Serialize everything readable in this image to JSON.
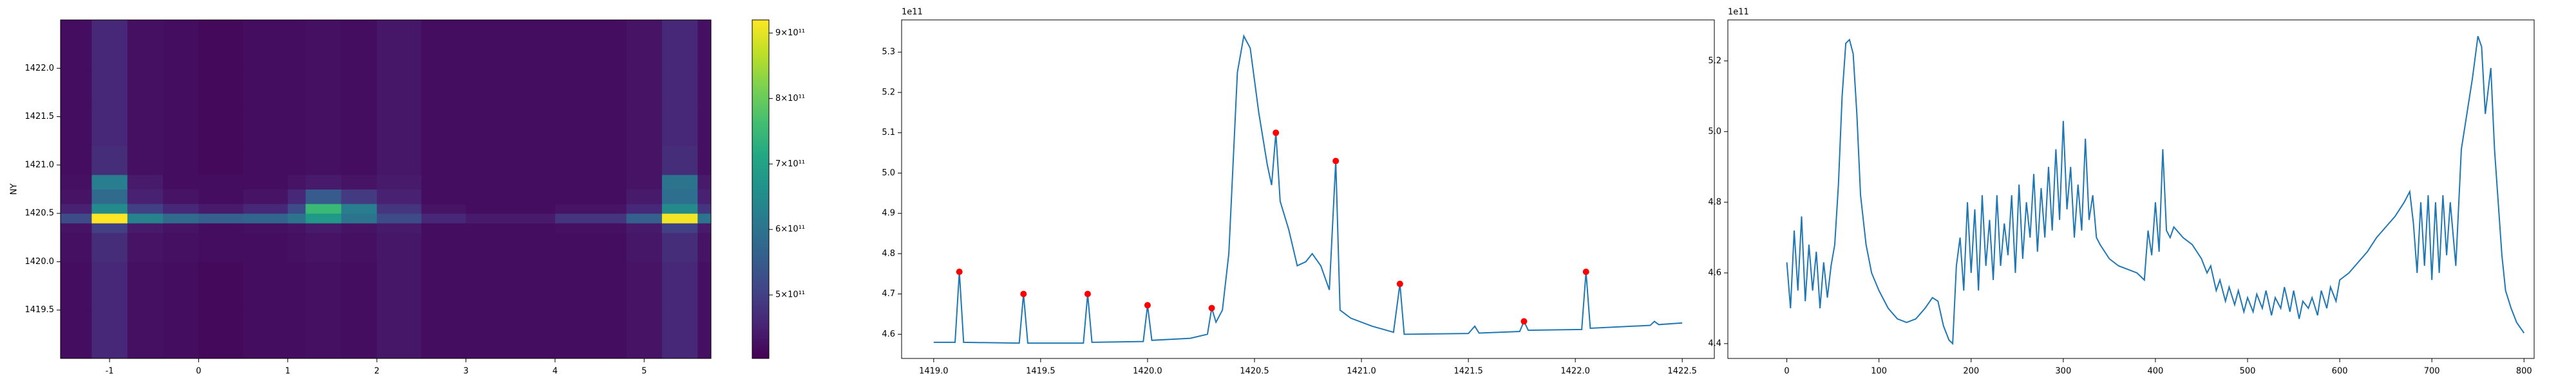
{
  "chart_data": [
    {
      "type": "heatmap",
      "y_label": "NY",
      "colormap": "viridis",
      "xlim": [
        -1.55,
        5.75
      ],
      "ylim": [
        1419.0,
        1422.5
      ],
      "xticks": [
        -1,
        0,
        1,
        2,
        3,
        4,
        5
      ],
      "yticks": [
        1419.5,
        {
          "value": 1420,
          "label": "1420.0"
        },
        1420.5,
        {
          "value": 1421,
          "label": "1421.0"
        },
        1421.5,
        {
          "value": 1422,
          "label": "1422.0"
        }
      ],
      "x_edges": [
        -1.55,
        -1.2,
        -0.8,
        -0.4,
        0,
        0.5,
        1.0,
        1.2,
        1.6,
        2.0,
        2.5,
        3.0,
        4.0,
        4.8,
        5.2,
        5.6,
        5.75
      ],
      "y_edges": [
        1419.0,
        1419.5,
        1420.0,
        1420.3,
        1420.4,
        1420.5,
        1420.6,
        1420.75,
        1420.9,
        1421.2,
        1421.6,
        1422.0,
        1422.5
      ],
      "z": [
        [
          420000000000.0,
          460000000000.0,
          425000000000.0,
          420000000000.0,
          415000000000.0,
          420000000000.0,
          420000000000.0,
          425000000000.0,
          420000000000.0,
          435000000000.0,
          420000000000.0,
          420000000000.0,
          420000000000.0,
          430000000000.0,
          460000000000.0,
          425000000000.0
        ],
        [
          420000000000.0,
          460000000000.0,
          425000000000.0,
          420000000000.0,
          415000000000.0,
          420000000000.0,
          420000000000.0,
          425000000000.0,
          420000000000.0,
          435000000000.0,
          420000000000.0,
          420000000000.0,
          420000000000.0,
          430000000000.0,
          460000000000.0,
          425000000000.0
        ],
        [
          425000000000.0,
          470000000000.0,
          430000000000.0,
          425000000000.0,
          420000000000.0,
          420000000000.0,
          425000000000.0,
          430000000000.0,
          425000000000.0,
          435000000000.0,
          420000000000.0,
          420000000000.0,
          420000000000.0,
          435000000000.0,
          470000000000.0,
          430000000000.0
        ],
        [
          430000000000.0,
          500000000000.0,
          440000000000.0,
          430000000000.0,
          420000000000.0,
          425000000000.0,
          430000000000.0,
          440000000000.0,
          430000000000.0,
          440000000000.0,
          420000000000.0,
          420000000000.0,
          425000000000.0,
          440000000000.0,
          500000000000.0,
          440000000000.0
        ],
        [
          520000000000.0,
          920000000000.0,
          630000000000.0,
          580000000000.0,
          560000000000.0,
          570000000000.0,
          600000000000.0,
          680000000000.0,
          600000000000.0,
          520000000000.0,
          460000000000.0,
          440000000000.0,
          480000000000.0,
          560000000000.0,
          910000000000.0,
          600000000000.0
        ],
        [
          450000000000.0,
          650000000000.0,
          500000000000.0,
          460000000000.0,
          440000000000.0,
          460000000000.0,
          520000000000.0,
          750000000000.0,
          620000000000.0,
          480000000000.0,
          430000000000.0,
          420000000000.0,
          430000000000.0,
          460000000000.0,
          650000000000.0,
          480000000000.0
        ],
        [
          430000000000.0,
          580000000000.0,
          450000000000.0,
          430000000000.0,
          420000000000.0,
          430000000000.0,
          460000000000.0,
          550000000000.0,
          490000000000.0,
          450000000000.0,
          420000000000.0,
          420000000000.0,
          420000000000.0,
          440000000000.0,
          590000000000.0,
          450000000000.0
        ],
        [
          425000000000.0,
          620000000000.0,
          440000000000.0,
          420000000000.0,
          420000000000.0,
          420000000000.0,
          430000000000.0,
          440000000000.0,
          430000000000.0,
          440000000000.0,
          420000000000.0,
          420000000000.0,
          420000000000.0,
          430000000000.0,
          600000000000.0,
          440000000000.0
        ],
        [
          420000000000.0,
          470000000000.0,
          425000000000.0,
          420000000000.0,
          415000000000.0,
          420000000000.0,
          420000000000.0,
          425000000000.0,
          420000000000.0,
          435000000000.0,
          420000000000.0,
          420000000000.0,
          420000000000.0,
          430000000000.0,
          470000000000.0,
          425000000000.0
        ],
        [
          420000000000.0,
          460000000000.0,
          425000000000.0,
          420000000000.0,
          415000000000.0,
          420000000000.0,
          420000000000.0,
          425000000000.0,
          420000000000.0,
          435000000000.0,
          420000000000.0,
          420000000000.0,
          420000000000.0,
          430000000000.0,
          460000000000.0,
          425000000000.0
        ],
        [
          420000000000.0,
          460000000000.0,
          425000000000.0,
          420000000000.0,
          415000000000.0,
          420000000000.0,
          420000000000.0,
          425000000000.0,
          420000000000.0,
          435000000000.0,
          420000000000.0,
          420000000000.0,
          420000000000.0,
          430000000000.0,
          460000000000.0,
          425000000000.0
        ],
        [
          420000000000.0,
          460000000000.0,
          425000000000.0,
          420000000000.0,
          415000000000.0,
          420000000000.0,
          420000000000.0,
          425000000000.0,
          420000000000.0,
          435000000000.0,
          420000000000.0,
          420000000000.0,
          420000000000.0,
          430000000000.0,
          460000000000.0,
          425000000000.0
        ]
      ],
      "colorbar": {
        "clim": [
          403000000000.0,
          920000000000.0
        ],
        "ticks": [
          {
            "value": 500000000000.0,
            "label": "5×10¹¹"
          },
          {
            "value": 600000000000.0,
            "label": "6×10¹¹"
          },
          {
            "value": 700000000000.0,
            "label": "7×10¹¹"
          },
          {
            "value": 800000000000.0,
            "label": "8×10¹¹"
          },
          {
            "value": 900000000000.0,
            "label": "9×10¹¹"
          }
        ]
      }
    },
    {
      "type": "line",
      "offset_text": "1e11",
      "xlim": [
        1418.85,
        1422.65
      ],
      "ylim": [
        4.54,
        5.38
      ],
      "xticks": [
        {
          "value": 1419,
          "label": "1419.0"
        },
        1419.5,
        {
          "value": 1420,
          "label": "1420.0"
        },
        1420.5,
        {
          "value": 1421,
          "label": "1421.0"
        },
        1421.5,
        {
          "value": 1422,
          "label": "1422.0"
        },
        1422.5
      ],
      "yticks": [
        4.6,
        4.7,
        4.8,
        4.9,
        {
          "value": 5,
          "label": "5.0"
        },
        5.1,
        5.2,
        5.3
      ],
      "series": [
        {
          "color": "#1f77b4",
          "x": [
            1419.0,
            1419.1,
            1419.12,
            1419.14,
            1419.4,
            1419.42,
            1419.44,
            1419.7,
            1419.72,
            1419.74,
            1419.98,
            1420.0,
            1420.02,
            1420.2,
            1420.28,
            1420.3,
            1420.32,
            1420.35,
            1420.38,
            1420.42,
            1420.45,
            1420.48,
            1420.52,
            1420.56,
            1420.58,
            1420.6,
            1420.62,
            1420.66,
            1420.7,
            1420.74,
            1420.77,
            1420.81,
            1420.85,
            1420.88,
            1420.9,
            1420.95,
            1421.05,
            1421.15,
            1421.18,
            1421.2,
            1421.5,
            1421.53,
            1421.55,
            1421.74,
            1421.76,
            1421.78,
            1422.03,
            1422.05,
            1422.07,
            1422.35,
            1422.37,
            1422.39,
            1422.5
          ],
          "values": [
            4.58,
            4.58,
            4.755,
            4.58,
            4.578,
            4.7,
            4.578,
            4.578,
            4.7,
            4.58,
            4.582,
            4.672,
            4.585,
            4.59,
            4.6,
            4.665,
            4.63,
            4.66,
            4.8,
            5.25,
            5.34,
            5.31,
            5.15,
            5.02,
            4.97,
            5.1,
            4.93,
            4.86,
            4.77,
            4.78,
            4.8,
            4.77,
            4.71,
            5.03,
            4.66,
            4.64,
            4.62,
            4.605,
            4.725,
            4.6,
            4.602,
            4.62,
            4.603,
            4.607,
            4.632,
            4.61,
            4.612,
            4.755,
            4.615,
            4.622,
            4.632,
            4.624,
            4.628
          ]
        }
      ],
      "peaks": {
        "color": "#ff0000",
        "x": [
          1419.12,
          1419.42,
          1419.72,
          1420.0,
          1420.3,
          1420.6,
          1420.88,
          1421.18,
          1421.76,
          1422.05
        ],
        "values": [
          4.755,
          4.7,
          4.7,
          4.672,
          4.665,
          5.1,
          5.03,
          4.725,
          4.632,
          4.755
        ]
      }
    },
    {
      "type": "line",
      "offset_text": "1e11",
      "xlim": [
        -64,
        811
      ],
      "ylim": [
        4.358,
        5.316
      ],
      "xticks": [
        0,
        100,
        200,
        300,
        400,
        500,
        600,
        700,
        800
      ],
      "yticks": [
        4.4,
        4.6,
        4.8,
        {
          "value": 5,
          "label": "5.0"
        },
        5.2
      ],
      "series": [
        {
          "color": "#1f77b4",
          "x": [
            0,
            4,
            8,
            12,
            16,
            20,
            24,
            28,
            32,
            36,
            40,
            44,
            48,
            52,
            56,
            60,
            64,
            68,
            72,
            76,
            80,
            86,
            92,
            100,
            110,
            120,
            130,
            140,
            150,
            158,
            164,
            170,
            176,
            180,
            184,
            188,
            192,
            196,
            200,
            204,
            208,
            212,
            216,
            220,
            224,
            228,
            232,
            236,
            240,
            244,
            248,
            252,
            256,
            260,
            264,
            268,
            272,
            276,
            280,
            284,
            288,
            292,
            296,
            300,
            304,
            308,
            312,
            316,
            320,
            324,
            328,
            332,
            336,
            340,
            350,
            360,
            370,
            380,
            388,
            392,
            396,
            400,
            404,
            408,
            412,
            416,
            420,
            430,
            440,
            450,
            456,
            460,
            466,
            470,
            476,
            480,
            486,
            490,
            496,
            500,
            506,
            510,
            516,
            520,
            526,
            530,
            536,
            540,
            546,
            550,
            556,
            560,
            566,
            570,
            576,
            580,
            586,
            590,
            596,
            600,
            610,
            620,
            630,
            640,
            650,
            660,
            670,
            676,
            680,
            684,
            688,
            692,
            696,
            700,
            704,
            708,
            712,
            716,
            720,
            726,
            732,
            738,
            744,
            750,
            754,
            758,
            764,
            768,
            772,
            776,
            780,
            786,
            792,
            800
          ],
          "values": [
            4.63,
            4.5,
            4.72,
            4.55,
            4.76,
            4.52,
            4.68,
            4.55,
            4.66,
            4.5,
            4.63,
            4.53,
            4.62,
            4.68,
            4.85,
            5.1,
            5.25,
            5.26,
            5.22,
            5.05,
            4.82,
            4.68,
            4.6,
            4.55,
            4.5,
            4.47,
            4.46,
            4.47,
            4.5,
            4.53,
            4.52,
            4.45,
            4.41,
            4.4,
            4.62,
            4.7,
            4.55,
            4.8,
            4.6,
            4.78,
            4.55,
            4.82,
            4.62,
            4.75,
            4.58,
            4.82,
            4.62,
            4.74,
            4.65,
            4.82,
            4.6,
            4.85,
            4.64,
            4.8,
            4.7,
            4.88,
            4.66,
            4.84,
            4.7,
            4.9,
            4.72,
            4.95,
            4.75,
            5.03,
            4.78,
            4.9,
            4.7,
            4.85,
            4.72,
            4.98,
            4.75,
            4.82,
            4.7,
            4.68,
            4.64,
            4.62,
            4.61,
            4.6,
            4.58,
            4.72,
            4.65,
            4.8,
            4.66,
            4.95,
            4.72,
            4.7,
            4.73,
            4.7,
            4.68,
            4.64,
            4.6,
            4.62,
            4.55,
            4.58,
            4.52,
            4.56,
            4.51,
            4.55,
            4.49,
            4.53,
            4.49,
            4.54,
            4.5,
            4.55,
            4.48,
            4.53,
            4.5,
            4.56,
            4.49,
            4.55,
            4.47,
            4.52,
            4.5,
            4.53,
            4.48,
            4.55,
            4.5,
            4.56,
            4.52,
            4.58,
            4.6,
            4.63,
            4.66,
            4.7,
            4.73,
            4.76,
            4.8,
            4.83,
            4.74,
            4.6,
            4.8,
            4.62,
            4.82,
            4.58,
            4.8,
            4.6,
            4.82,
            4.65,
            4.8,
            4.62,
            4.95,
            5.05,
            5.15,
            5.27,
            5.24,
            5.05,
            5.18,
            4.95,
            4.8,
            4.65,
            4.55,
            4.5,
            4.46,
            4.43
          ]
        }
      ]
    }
  ]
}
